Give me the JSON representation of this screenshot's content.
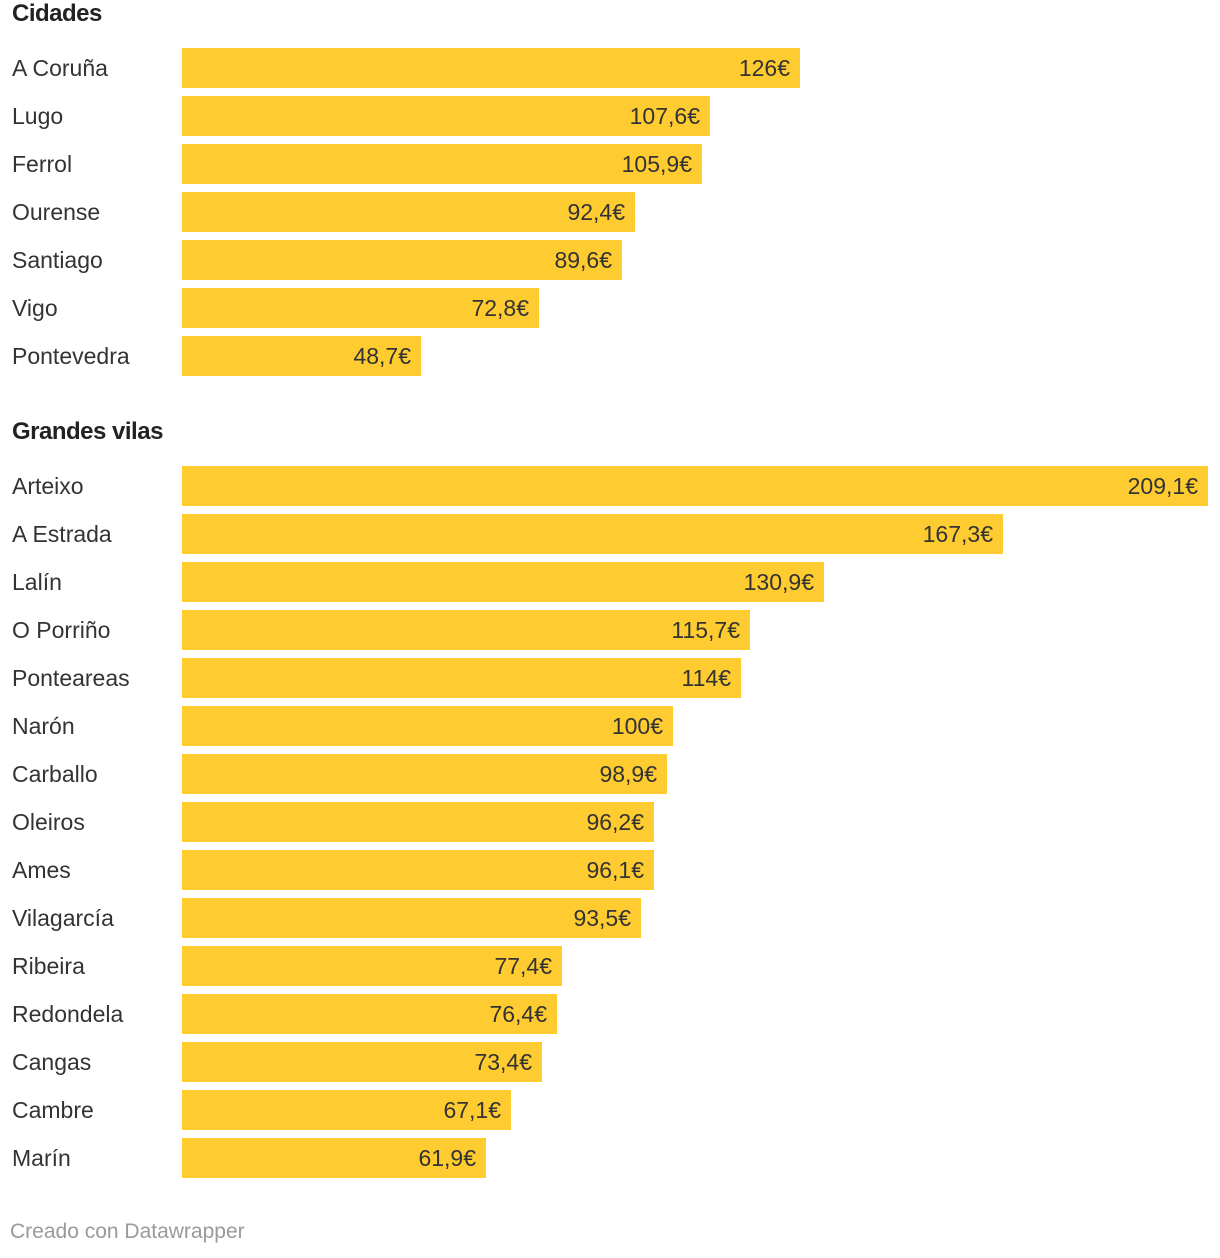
{
  "colors": {
    "bar": "#fecb30",
    "text": "#333333",
    "footer": "#9a9a9a"
  },
  "chart_data": [
    {
      "type": "bar",
      "orientation": "horizontal",
      "title": "Cidades",
      "categories": [
        "A Coruña",
        "Lugo",
        "Ferrol",
        "Ourense",
        "Santiago",
        "Vigo",
        "Pontevedra"
      ],
      "values": [
        126,
        107.6,
        105.9,
        92.4,
        89.6,
        72.8,
        48.7
      ],
      "value_labels": [
        "126€",
        "107,6€",
        "105,9€",
        "92,4€",
        "89,6€",
        "72,8€",
        "48,7€"
      ],
      "xlim": [
        0,
        209.1
      ]
    },
    {
      "type": "bar",
      "orientation": "horizontal",
      "title": "Grandes vilas",
      "categories": [
        "Arteixo",
        "A Estrada",
        "Lalín",
        "O Porriño",
        "Ponteareas",
        "Narón",
        "Carballo",
        "Oleiros",
        "Ames",
        "Vilagarcía",
        "Ribeira",
        "Redondela",
        "Cangas",
        "Cambre",
        "Marín"
      ],
      "values": [
        209.1,
        167.3,
        130.9,
        115.7,
        114,
        100,
        98.9,
        96.2,
        96.1,
        93.5,
        77.4,
        76.4,
        73.4,
        67.1,
        61.9
      ],
      "value_labels": [
        "209,1€",
        "167,3€",
        "130,9€",
        "115,7€",
        "114€",
        "100€",
        "98,9€",
        "96,2€",
        "96,1€",
        "93,5€",
        "77,4€",
        "76,4€",
        "73,4€",
        "67,1€",
        "61,9€"
      ],
      "xlim": [
        0,
        209.1
      ]
    }
  ],
  "footer": {
    "credit": "Creado con Datawrapper"
  }
}
